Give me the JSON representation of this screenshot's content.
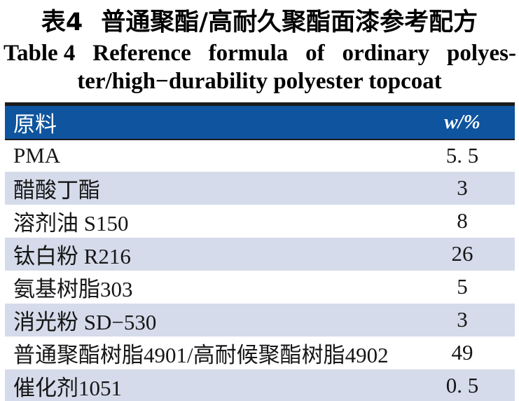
{
  "theme": {
    "header_bg": "#0e549e",
    "row_alt_bg": "#d5dbea",
    "rule_color": "#1a1a1a",
    "header_text": "#ffffff",
    "body_text": "#161616"
  },
  "titles": {
    "zh_label": "表4",
    "zh_text": "普通聚酯/高耐久聚酯面漆参考配方",
    "en_line1_words": [
      "Table 4",
      "Reference",
      "formula",
      "of",
      "ordinary",
      "polyes-"
    ],
    "en_line2": "ter/high−durability polyester topcoat"
  },
  "table": {
    "header": {
      "material": "原料",
      "value": "w/%"
    },
    "rows": [
      {
        "material": "PMA",
        "value": "5. 5"
      },
      {
        "material": "醋酸丁酯",
        "value": "3"
      },
      {
        "material": "溶剂油 S150",
        "value": "8"
      },
      {
        "material": "钛白粉 R216",
        "value": "26"
      },
      {
        "material": "氨基树脂303",
        "value": "5"
      },
      {
        "material": "消光粉 SD−530",
        "value": "3"
      },
      {
        "material": "普通聚酯树脂4901/高耐候聚酯树脂4902",
        "value": "49"
      },
      {
        "material": "催化剂1051",
        "value": "0. 5"
      }
    ]
  }
}
